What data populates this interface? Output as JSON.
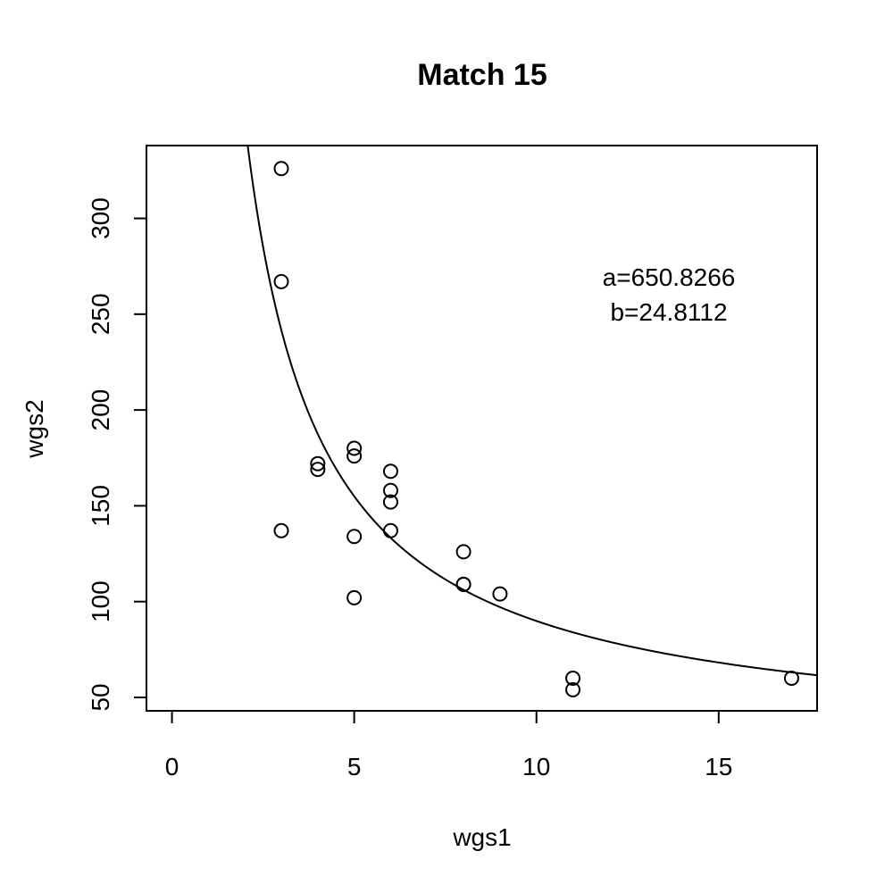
{
  "chart_data": {
    "type": "scatter",
    "title": "Match 15",
    "xlabel": "wgs1",
    "ylabel": "wgs2",
    "xlim": [
      -0.7,
      17.7
    ],
    "ylim": [
      43,
      338
    ],
    "xticks": [
      0,
      5,
      10,
      15
    ],
    "yticks": [
      50,
      100,
      150,
      200,
      250,
      300
    ],
    "grid": false,
    "points": [
      {
        "x": 3,
        "y": 326
      },
      {
        "x": 3,
        "y": 267
      },
      {
        "x": 3,
        "y": 137
      },
      {
        "x": 4,
        "y": 172
      },
      {
        "x": 4,
        "y": 169
      },
      {
        "x": 5,
        "y": 180
      },
      {
        "x": 5,
        "y": 176
      },
      {
        "x": 5,
        "y": 134
      },
      {
        "x": 5,
        "y": 102
      },
      {
        "x": 6,
        "y": 168
      },
      {
        "x": 6,
        "y": 158
      },
      {
        "x": 6,
        "y": 152
      },
      {
        "x": 6,
        "y": 137
      },
      {
        "x": 8,
        "y": 126
      },
      {
        "x": 8,
        "y": 109
      },
      {
        "x": 8,
        "y": 109
      },
      {
        "x": 9,
        "y": 104
      },
      {
        "x": 11,
        "y": 60
      },
      {
        "x": 11,
        "y": 54
      },
      {
        "x": 17,
        "y": 60
      }
    ],
    "curve": {
      "form": "y = a/x + b",
      "a": 650.8266,
      "b": 24.8112
    },
    "annotations": [
      "a=650.8266",
      "b=24.8112"
    ]
  }
}
